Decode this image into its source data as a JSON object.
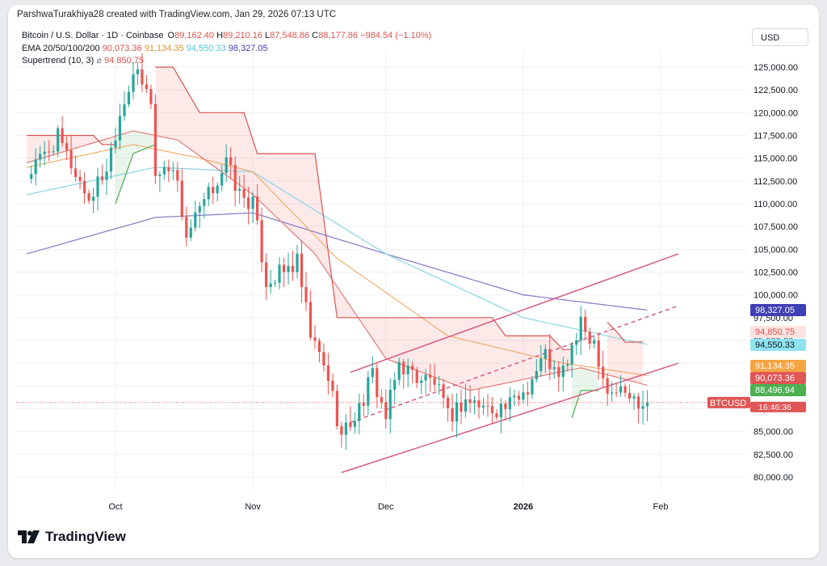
{
  "attribution": "ParshwaTurakhiya28 created with TradingView.com, Jan 29, 2026 07:13 UTC",
  "legend": {
    "symbol": "Bitcoin / U.S. Dollar · 1D · Coinbase",
    "open_label": "O",
    "open": "89,162.40",
    "high_label": "H",
    "high": "89,210.16",
    "low_label": "L",
    "low": "87,548.86",
    "close_label": "C",
    "close": "88,177.86",
    "change": "−984.54 (−1.10%)",
    "ema_label": "EMA 20/50/100/200",
    "ema20": "90,073.36",
    "ema50": "91,134.35",
    "ema100": "94,550.33",
    "ema200": "98,327.05",
    "supertrend_label": "Supertrend (10, 3)",
    "supertrend_symbol": "⌀",
    "supertrend_value": "94,850.75"
  },
  "currency": "USD",
  "logo_text": "TradingView",
  "colors": {
    "up": "#26a69a",
    "down": "#ef5350",
    "ema20": "#e0726e",
    "ema50": "#f0a860",
    "ema100": "#8fd8e6",
    "ema200": "#8b82c9",
    "supertrend_down": "#d9534f",
    "supertrend_up": "#4caf50",
    "channel": "#d45c82"
  },
  "chart_data": {
    "type": "candlestick",
    "symbol": "BTCUSD",
    "ylim": [
      77500,
      127500
    ],
    "y_ticks": [
      80000,
      82500,
      85000,
      87500,
      90000,
      92500,
      95000,
      97500,
      100000,
      102500,
      105000,
      107500,
      110000,
      112500,
      115000,
      117500,
      120000,
      122500,
      125000
    ],
    "x_ticks": [
      {
        "label": "Oct",
        "date": "2025-10-01"
      },
      {
        "label": "Nov",
        "date": "2025-11-01"
      },
      {
        "label": "Dec",
        "date": "2025-12-01"
      },
      {
        "label": "2026",
        "date": "2026-01-01"
      },
      {
        "label": "Feb",
        "date": "2026-02-01"
      }
    ],
    "x_range": [
      "2025-09-11",
      "2026-02-10"
    ],
    "closes": [
      {
        "date": "2025-09-11",
        "close": 113000
      },
      {
        "date": "2025-09-18",
        "close": 117200
      },
      {
        "date": "2025-09-25",
        "close": 110500
      },
      {
        "date": "2025-09-29",
        "close": 114000
      },
      {
        "date": "2025-10-02",
        "close": 120000
      },
      {
        "date": "2025-10-05",
        "close": 124500
      },
      {
        "date": "2025-10-09",
        "close": 121500
      },
      {
        "date": "2025-10-10",
        "close": 113000
      },
      {
        "date": "2025-10-14",
        "close": 114500
      },
      {
        "date": "2025-10-17",
        "close": 106500
      },
      {
        "date": "2025-10-21",
        "close": 110000
      },
      {
        "date": "2025-10-26",
        "close": 114500
      },
      {
        "date": "2025-10-29",
        "close": 111000
      },
      {
        "date": "2025-11-01",
        "close": 110000
      },
      {
        "date": "2025-11-04",
        "close": 101500
      },
      {
        "date": "2025-11-08",
        "close": 102500
      },
      {
        "date": "2025-11-11",
        "close": 103500
      },
      {
        "date": "2025-11-14",
        "close": 95500
      },
      {
        "date": "2025-11-18",
        "close": 91000
      },
      {
        "date": "2025-11-21",
        "close": 84500
      },
      {
        "date": "2025-11-25",
        "close": 87500
      },
      {
        "date": "2025-11-28",
        "close": 91200
      },
      {
        "date": "2025-12-01",
        "close": 86500
      },
      {
        "date": "2025-12-04",
        "close": 92500
      },
      {
        "date": "2025-12-08",
        "close": 91000
      },
      {
        "date": "2025-12-12",
        "close": 90500
      },
      {
        "date": "2025-12-15",
        "close": 86500
      },
      {
        "date": "2025-12-19",
        "close": 88500
      },
      {
        "date": "2025-12-24",
        "close": 87500
      },
      {
        "date": "2025-12-29",
        "close": 87800
      },
      {
        "date": "2026-01-02",
        "close": 90000
      },
      {
        "date": "2026-01-06",
        "close": 93500
      },
      {
        "date": "2026-01-09",
        "close": 90500
      },
      {
        "date": "2026-01-14",
        "close": 96500
      },
      {
        "date": "2026-01-17",
        "close": 95000
      },
      {
        "date": "2026-01-20",
        "close": 89500
      },
      {
        "date": "2026-01-23",
        "close": 89500
      },
      {
        "date": "2026-01-26",
        "close": 88500
      },
      {
        "date": "2026-01-29",
        "close": 88177.86
      }
    ],
    "ema20_at": [
      {
        "date": "2025-09-11",
        "v": 114500
      },
      {
        "date": "2025-10-05",
        "v": 118000
      },
      {
        "date": "2025-10-15",
        "v": 117000
      },
      {
        "date": "2025-11-01",
        "v": 111000
      },
      {
        "date": "2025-11-15",
        "v": 104500
      },
      {
        "date": "2025-12-01",
        "v": 93000
      },
      {
        "date": "2025-12-20",
        "v": 89500
      },
      {
        "date": "2026-01-14",
        "v": 92000
      },
      {
        "date": "2026-01-29",
        "v": 90073.36
      }
    ],
    "ema50_at": [
      {
        "date": "2025-09-11",
        "v": 114000
      },
      {
        "date": "2025-10-05",
        "v": 116500
      },
      {
        "date": "2025-10-20",
        "v": 115000
      },
      {
        "date": "2025-11-01",
        "v": 113500
      },
      {
        "date": "2025-11-20",
        "v": 104000
      },
      {
        "date": "2025-12-15",
        "v": 95500
      },
      {
        "date": "2026-01-10",
        "v": 92500
      },
      {
        "date": "2026-01-29",
        "v": 91134.35
      }
    ],
    "ema100_at": [
      {
        "date": "2025-09-11",
        "v": 111000
      },
      {
        "date": "2025-10-10",
        "v": 114000
      },
      {
        "date": "2025-11-01",
        "v": 113500
      },
      {
        "date": "2025-12-01",
        "v": 104500
      },
      {
        "date": "2026-01-01",
        "v": 97500
      },
      {
        "date": "2026-01-29",
        "v": 94550.33
      }
    ],
    "ema200_at": [
      {
        "date": "2025-09-11",
        "v": 104500
      },
      {
        "date": "2025-10-10",
        "v": 108500
      },
      {
        "date": "2025-11-01",
        "v": 109000
      },
      {
        "date": "2025-12-01",
        "v": 104500
      },
      {
        "date": "2026-01-01",
        "v": 100000
      },
      {
        "date": "2026-01-29",
        "v": 98327.05
      }
    ],
    "supertrend_segments": [
      {
        "trend": "down",
        "points": [
          [
            "2025-09-11",
            117500
          ],
          [
            "2025-09-26",
            117500
          ],
          [
            "2025-09-28",
            116500
          ],
          [
            "2025-10-01",
            116500
          ]
        ]
      },
      {
        "trend": "up",
        "points": [
          [
            "2025-10-01",
            110000
          ],
          [
            "2025-10-05",
            115500
          ],
          [
            "2025-10-10",
            116500
          ]
        ]
      },
      {
        "trend": "down",
        "points": [
          [
            "2025-10-10",
            125000
          ],
          [
            "2025-10-14",
            125000
          ],
          [
            "2025-10-20",
            120000
          ],
          [
            "2025-10-30",
            120000
          ],
          [
            "2025-11-02",
            115500
          ],
          [
            "2025-11-15",
            115500
          ],
          [
            "2025-11-20",
            97500
          ],
          [
            "2025-12-25",
            97500
          ],
          [
            "2025-12-28",
            95500
          ],
          [
            "2026-01-07",
            95500
          ],
          [
            "2026-01-10",
            94000
          ],
          [
            "2026-01-12",
            94000
          ]
        ]
      },
      {
        "trend": "up",
        "points": [
          [
            "2026-01-12",
            86500
          ],
          [
            "2026-01-14",
            89500
          ],
          [
            "2026-01-18",
            89500
          ]
        ]
      },
      {
        "trend": "down",
        "points": [
          [
            "2026-01-20",
            97000
          ],
          [
            "2026-01-22",
            96000
          ],
          [
            "2026-01-24",
            94800
          ],
          [
            "2026-01-28",
            94850.75
          ]
        ]
      }
    ],
    "channel": {
      "upper": [
        [
          "2025-11-23",
          91500
        ],
        [
          "2026-02-05",
          104500
        ]
      ],
      "middle": [
        [
          "2025-11-23",
          86000
        ],
        [
          "2026-02-05",
          98800
        ]
      ],
      "lower": [
        [
          "2025-11-21",
          80500
        ],
        [
          "2026-02-05",
          92500
        ]
      ]
    },
    "current_price_line": 88177.86,
    "price_labels": [
      {
        "text": "98,327.05",
        "value": 98327.05,
        "bg": "#3d3fb3",
        "fg": "#ffffff"
      },
      {
        "text": "94,850.75",
        "value": 94850.75,
        "bg": "#fde3e1",
        "fg": "#d9534f"
      },
      {
        "text": "94,550.33",
        "value": 94550.33,
        "bg": "#8fe3f0",
        "fg": "#131722"
      },
      {
        "text": "91,134.35",
        "value": 91134.35,
        "bg": "#f5a442",
        "fg": "#ffffff"
      },
      {
        "text": "90,073.36",
        "value": 90073.36,
        "bg": "#e05555",
        "fg": "#ffffff"
      },
      {
        "text": "88,496.94",
        "value": 88496.94,
        "bg": "#4caf50",
        "fg": "#ffffff"
      }
    ],
    "ticker_badge": {
      "symbol": "BTCUSD",
      "time": "16:46:36"
    }
  }
}
